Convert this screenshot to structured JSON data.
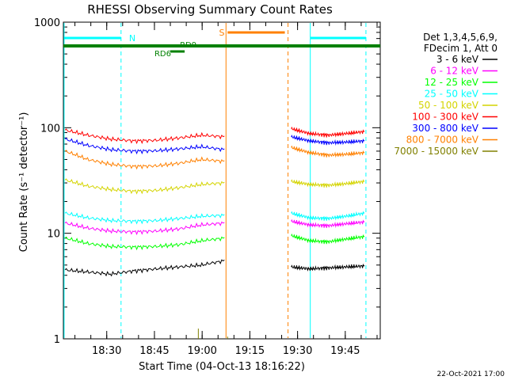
{
  "chart_data": {
    "type": "line",
    "title": "RHESSI Observing Summary Count Rates",
    "xlabel": "Start Time (04-Oct-13 18:16:22)",
    "ylabel": "Count Rate (s⁻¹ detector⁻¹)",
    "y_scale": "log",
    "ylim": [
      1,
      1000
    ],
    "xlim_minutes": [
      "18:16:22",
      "19:56:00"
    ],
    "x_tick_labels": [
      "18:30",
      "18:45",
      "19:00",
      "19:15",
      "19:30",
      "19:45"
    ],
    "y_tick_labels": [
      "1",
      "10",
      "100",
      "1000"
    ],
    "footer": "22-Oct-2021 17:00",
    "legend": {
      "position": "right",
      "header": [
        "Det 1,3,4,5,6,9,",
        "FDecim 1, Att 0"
      ]
    },
    "series": [
      {
        "name": "3 - 6 keV",
        "color": "#000000",
        "seg1": [
          4.5,
          4.3,
          4.1,
          4.4,
          4.6,
          4.8,
          5.0,
          5.5
        ],
        "seg2": [
          4.8,
          4.6,
          4.7,
          4.8,
          4.9
        ]
      },
      {
        "name": "6 - 12 keV",
        "color": "#ff00ff",
        "seg1": [
          12.5,
          11.2,
          10.5,
          10.3,
          10.5,
          11.0,
          12.0,
          12.5
        ],
        "seg2": [
          13.0,
          12.0,
          11.8,
          12.3,
          12.8
        ]
      },
      {
        "name": "12 - 25 keV",
        "color": "#00ff00",
        "seg1": [
          9.0,
          8.0,
          7.5,
          7.4,
          7.5,
          7.8,
          8.5,
          9.0
        ],
        "seg2": [
          9.5,
          8.5,
          8.3,
          8.8,
          9.3
        ]
      },
      {
        "name": "25 - 50 keV",
        "color": "#00ffff",
        "seg1": [
          15.5,
          14.0,
          13.2,
          13.0,
          13.2,
          13.8,
          14.5,
          14.8
        ],
        "seg2": [
          15.5,
          14.0,
          13.8,
          14.5,
          15.5
        ]
      },
      {
        "name": "50 - 100 keV",
        "color": "#d4d400",
        "seg1": [
          32,
          28,
          26,
          25,
          25.5,
          27,
          29,
          30
        ],
        "seg2": [
          31,
          29,
          28.5,
          29.5,
          31
        ]
      },
      {
        "name": "100 - 300 keV",
        "color": "#ff0000",
        "seg1": [
          95,
          85,
          78,
          75,
          76,
          80,
          85,
          82
        ],
        "seg2": [
          98,
          88,
          85,
          88,
          92
        ]
      },
      {
        "name": "300 - 800 keV",
        "color": "#0000ff",
        "seg1": [
          78,
          68,
          62,
          60,
          60.5,
          63,
          66,
          62
        ],
        "seg2": [
          82,
          75,
          72,
          73,
          75
        ]
      },
      {
        "name": "800 - 7000 keV",
        "color": "#ff8000",
        "seg1": [
          60,
          50,
          45,
          43,
          43.5,
          46,
          50,
          48
        ],
        "seg2": [
          65,
          58,
          55,
          56,
          58
        ]
      },
      {
        "name": "7000 - 15000 keV",
        "color": "#808000",
        "seg1": [],
        "seg2": []
      }
    ],
    "annotations": [
      {
        "label": "N",
        "color": "#00ffff"
      },
      {
        "label": "S",
        "color": "#ff8000"
      },
      {
        "label": "RD6",
        "color": "#008000"
      },
      {
        "label": "RD9",
        "color": "#008000"
      }
    ]
  }
}
